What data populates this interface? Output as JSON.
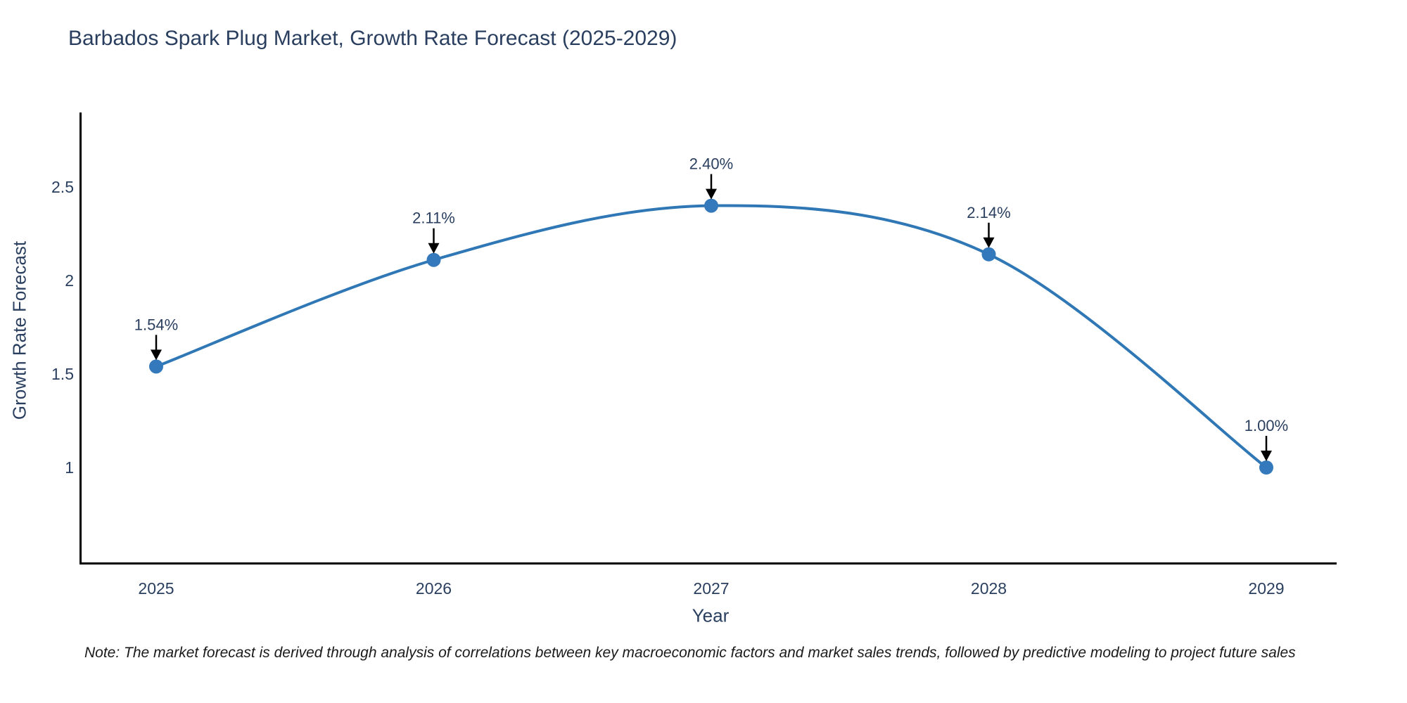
{
  "title": "Barbados Spark Plug Market, Growth Rate Forecast (2025-2029)",
  "note": "Note: The market forecast is derived through analysis of correlations between key macroeconomic factors and market sales trends, followed by predictive modeling to project future sales",
  "chart_data": {
    "type": "line",
    "title": "Barbados Spark Plug Market, Growth Rate Forecast (2025-2029)",
    "xlabel": "Year",
    "ylabel": "Growth Rate Forecast",
    "categories": [
      "2025",
      "2026",
      "2027",
      "2028",
      "2029"
    ],
    "series": [
      {
        "name": "Growth Rate Forecast",
        "values": [
          1.54,
          2.11,
          2.4,
          2.14,
          1.0
        ]
      }
    ],
    "point_labels": [
      "1.54%",
      "2.11%",
      "2.40%",
      "2.14%",
      "1.00%"
    ],
    "ytick_labels": [
      "1",
      "1.5",
      "2",
      "2.5"
    ],
    "ytick_values": [
      1,
      1.5,
      2,
      2.5
    ],
    "ylim": [
      0.49,
      2.9
    ],
    "line_shape": "spline",
    "grid": false,
    "legend": false,
    "colors": {
      "line": "#2f77b5",
      "marker": "#3379bb",
      "arrow": "#000000",
      "axis": "#000000",
      "text": "#2a3f5f"
    }
  }
}
